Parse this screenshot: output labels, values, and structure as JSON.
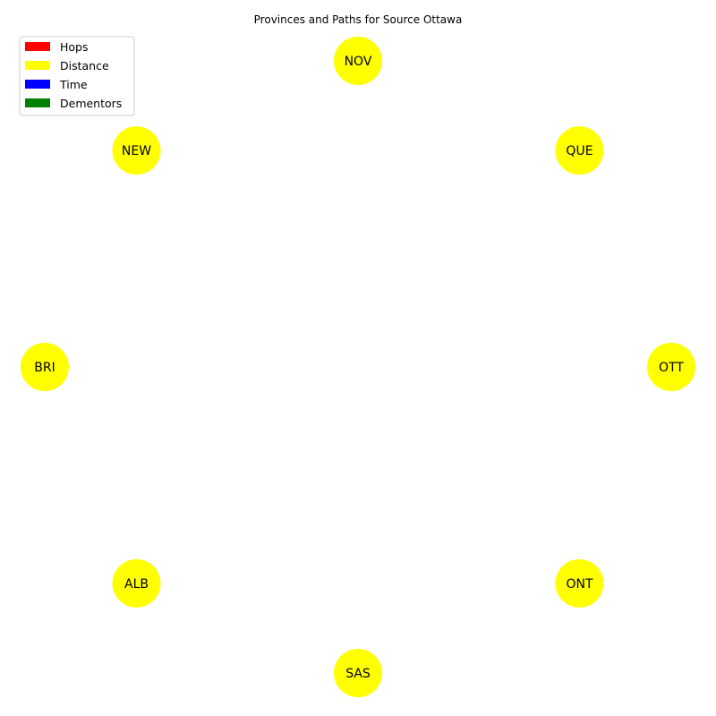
{
  "title": "Provinces and Paths for Source Ottawa",
  "legend": [
    {
      "label": "Hops",
      "color": "#ff0000"
    },
    {
      "label": "Distance",
      "color": "#ffff00"
    },
    {
      "label": "Time",
      "color": "#0000ff"
    },
    {
      "label": "Dementors",
      "color": "#008000"
    }
  ],
  "node_color": "#ffff00",
  "nodes": [
    "OTT",
    "QUE",
    "NOV",
    "NEW",
    "BRI",
    "ALB",
    "SAS",
    "ONT"
  ],
  "edges": []
}
